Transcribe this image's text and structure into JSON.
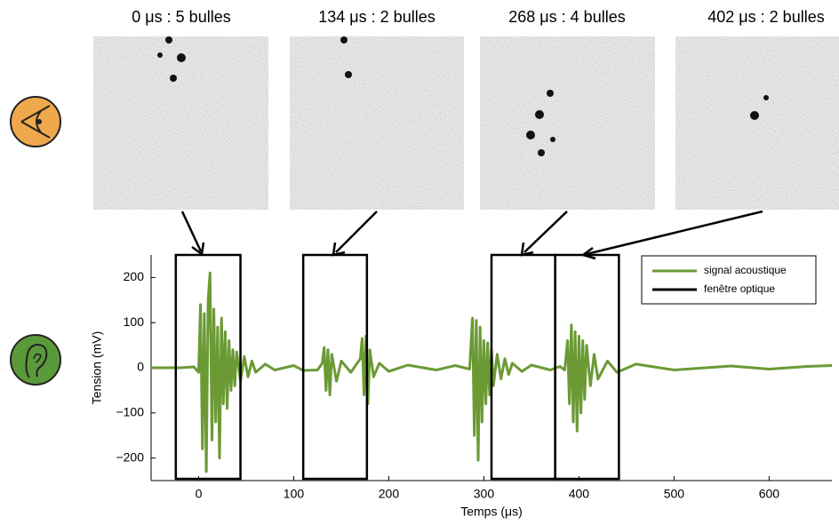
{
  "chart_data": {
    "type": "line",
    "panels": [
      {
        "title": "0 μs : 5 bulles"
      },
      {
        "title": "134 μs : 2 bulles"
      },
      {
        "title": "268 μs : 4 bulles"
      },
      {
        "title": "402 μs : 2 bulles"
      }
    ],
    "x_label": "Temps (μs)",
    "y_label": "Tension (mV)",
    "xlim": [
      -50,
      666
    ],
    "ylim": [
      -250,
      250
    ],
    "xticks": [
      0,
      100,
      200,
      300,
      400,
      500,
      600
    ],
    "yticks": [
      {
        "value": -200,
        "label": "−200"
      },
      {
        "value": -100,
        "label": "−100"
      },
      0,
      100,
      200
    ],
    "legend_position": "upper right",
    "x": [
      -50,
      -20,
      -5,
      0,
      2,
      4,
      6,
      8,
      10,
      12,
      14,
      16,
      18,
      20,
      22,
      24,
      26,
      28,
      30,
      32,
      34,
      36,
      38,
      40,
      44,
      48,
      52,
      56,
      60,
      70,
      80,
      100,
      110,
      125,
      130,
      132,
      134,
      136,
      138,
      140,
      145,
      150,
      160,
      170,
      172,
      174,
      176,
      178,
      180,
      184,
      190,
      200,
      220,
      250,
      270,
      285,
      288,
      290,
      292,
      294,
      296,
      298,
      300,
      302,
      304,
      306,
      308,
      310,
      314,
      318,
      322,
      326,
      330,
      340,
      350,
      370,
      380,
      385,
      388,
      390,
      392,
      394,
      396,
      398,
      400,
      402,
      404,
      406,
      408,
      412,
      416,
      420,
      430,
      440,
      460,
      500,
      560,
      600,
      640,
      666
    ],
    "series": [
      {
        "name": "signal acoustique",
        "color": "#6b9a35",
        "values": [
          0,
          0,
          2,
          -10,
          140,
          -180,
          120,
          -230,
          150,
          210,
          -160,
          130,
          -120,
          90,
          -200,
          110,
          -80,
          80,
          -90,
          60,
          -50,
          40,
          -40,
          35,
          -30,
          25,
          -20,
          15,
          -10,
          8,
          -5,
          5,
          -6,
          -5,
          10,
          45,
          -50,
          40,
          -60,
          30,
          -30,
          15,
          -10,
          20,
          65,
          -60,
          70,
          -80,
          40,
          -20,
          10,
          -8,
          6,
          -5,
          5,
          -3,
          110,
          -150,
          105,
          -205,
          90,
          -120,
          60,
          -80,
          55,
          -60,
          40,
          -40,
          30,
          -25,
          20,
          -15,
          10,
          -8,
          6,
          -5,
          3,
          -5,
          60,
          -80,
          95,
          -120,
          80,
          -140,
          70,
          -100,
          60,
          -70,
          50,
          -40,
          30,
          -25,
          15,
          -10,
          8,
          -5,
          4,
          -3,
          3,
          5
        ]
      }
    ],
    "windows": {
      "name": "fenêtre optique",
      "color": "#000000",
      "spans": [
        {
          "start": -24,
          "end": 44
        },
        {
          "start": 110,
          "end": 177
        },
        {
          "start": 308,
          "end": 375
        },
        {
          "start": 375,
          "end": 442
        }
      ]
    }
  }
}
